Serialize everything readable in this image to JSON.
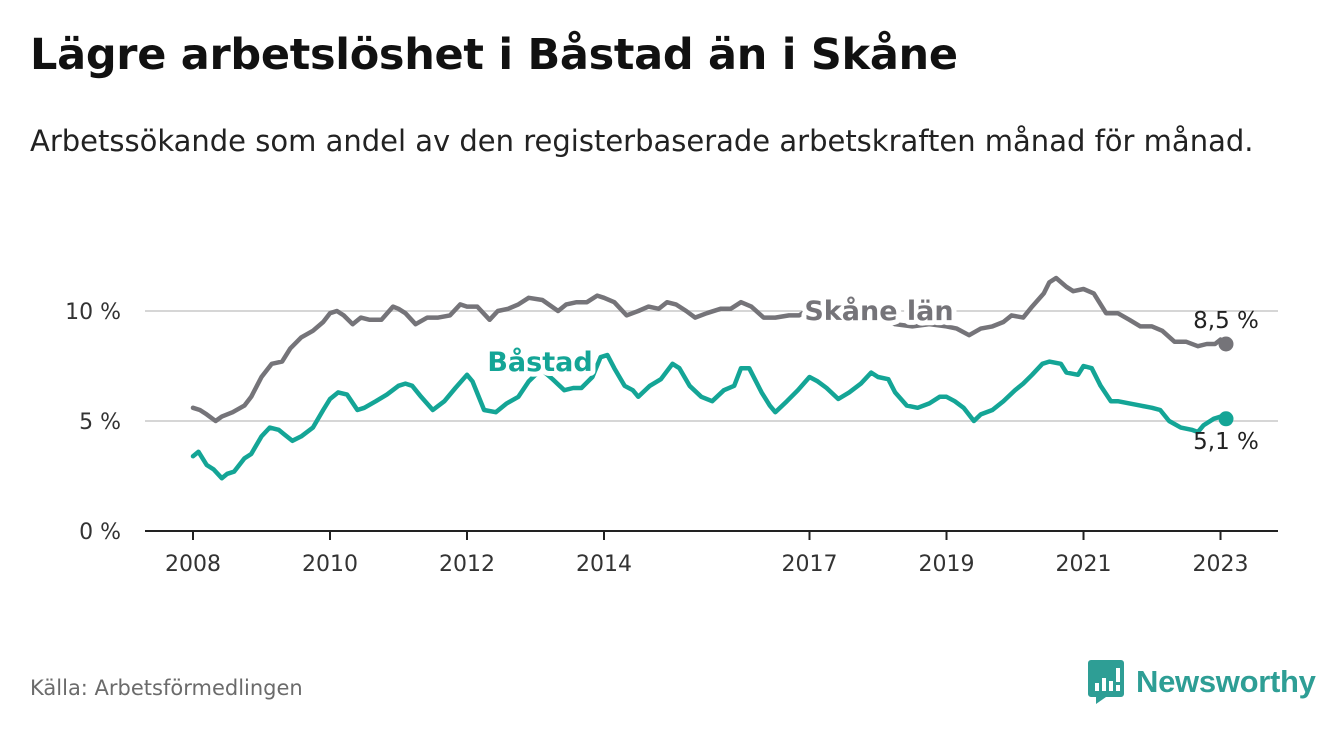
{
  "title": "Lägre arbetslöshet i Båstad än i Skåne",
  "subtitle": "Arbetssökande som andel av den registerbaserade arbetskraften månad för månad.",
  "source": "Källa: Arbetsförmedlingen",
  "brand": "Newsworthy",
  "colors": {
    "skane": "#757479",
    "bastad": "#14a596",
    "grid": "#d6d6d6",
    "axis": "#222222",
    "brand": "#2e9e95"
  },
  "chart_data": {
    "type": "line",
    "x_range": [
      2008.0,
      2023.08
    ],
    "ylim": [
      0,
      12
    ],
    "y_ticks": [
      {
        "value": 0,
        "label": "0 %"
      },
      {
        "value": 5,
        "label": "5 %"
      },
      {
        "value": 10,
        "label": "10 %"
      }
    ],
    "x_ticks": [
      {
        "value": 2008,
        "label": "2008"
      },
      {
        "value": 2010,
        "label": "2010"
      },
      {
        "value": 2012,
        "label": "2012"
      },
      {
        "value": 2014,
        "label": "2014"
      },
      {
        "value": 2017,
        "label": "2017"
      },
      {
        "value": 2019,
        "label": "2019"
      },
      {
        "value": 2021,
        "label": "2021"
      },
      {
        "value": 2023,
        "label": "2023"
      }
    ],
    "gridlines": true,
    "series": [
      {
        "name": "Skåne län",
        "key": "skane",
        "end_label": "8,5 %",
        "points": [
          [
            2008.0,
            5.6
          ],
          [
            2008.1,
            5.5
          ],
          [
            2008.2,
            5.3
          ],
          [
            2008.33,
            5.0
          ],
          [
            2008.42,
            5.2
          ],
          [
            2008.58,
            5.4
          ],
          [
            2008.75,
            5.7
          ],
          [
            2008.85,
            6.1
          ],
          [
            2009.0,
            7.0
          ],
          [
            2009.15,
            7.6
          ],
          [
            2009.3,
            7.7
          ],
          [
            2009.42,
            8.3
          ],
          [
            2009.58,
            8.8
          ],
          [
            2009.75,
            9.1
          ],
          [
            2009.9,
            9.5
          ],
          [
            2010.0,
            9.9
          ],
          [
            2010.1,
            10.0
          ],
          [
            2010.2,
            9.8
          ],
          [
            2010.33,
            9.4
          ],
          [
            2010.45,
            9.7
          ],
          [
            2010.58,
            9.6
          ],
          [
            2010.75,
            9.6
          ],
          [
            2010.92,
            10.2
          ],
          [
            2011.0,
            10.1
          ],
          [
            2011.1,
            9.9
          ],
          [
            2011.25,
            9.4
          ],
          [
            2011.42,
            9.7
          ],
          [
            2011.58,
            9.7
          ],
          [
            2011.75,
            9.8
          ],
          [
            2011.9,
            10.3
          ],
          [
            2012.0,
            10.2
          ],
          [
            2012.15,
            10.2
          ],
          [
            2012.33,
            9.6
          ],
          [
            2012.45,
            10.0
          ],
          [
            2012.6,
            10.1
          ],
          [
            2012.75,
            10.3
          ],
          [
            2012.9,
            10.6
          ],
          [
            2013.1,
            10.5
          ],
          [
            2013.33,
            10.0
          ],
          [
            2013.45,
            10.3
          ],
          [
            2013.6,
            10.4
          ],
          [
            2013.75,
            10.4
          ],
          [
            2013.9,
            10.7
          ],
          [
            2014.0,
            10.6
          ],
          [
            2014.15,
            10.4
          ],
          [
            2014.33,
            9.8
          ],
          [
            2014.5,
            10.0
          ],
          [
            2014.65,
            10.2
          ],
          [
            2014.8,
            10.1
          ],
          [
            2014.92,
            10.4
          ],
          [
            2015.05,
            10.3
          ],
          [
            2015.2,
            10.0
          ],
          [
            2015.33,
            9.7
          ],
          [
            2015.5,
            9.9
          ],
          [
            2015.7,
            10.1
          ],
          [
            2015.85,
            10.1
          ],
          [
            2016.0,
            10.4
          ],
          [
            2016.15,
            10.2
          ],
          [
            2016.33,
            9.7
          ],
          [
            2016.5,
            9.7
          ],
          [
            2016.7,
            9.8
          ],
          [
            2016.85,
            9.8
          ],
          [
            2017.0,
            10.1
          ],
          [
            2017.5,
            10.2
          ],
          [
            2017.75,
            9.9
          ],
          [
            2018.0,
            9.8
          ],
          [
            2018.25,
            9.4
          ],
          [
            2018.5,
            9.3
          ],
          [
            2018.75,
            9.4
          ],
          [
            2019.0,
            9.3
          ],
          [
            2019.15,
            9.2
          ],
          [
            2019.33,
            8.9
          ],
          [
            2019.5,
            9.2
          ],
          [
            2019.67,
            9.3
          ],
          [
            2019.83,
            9.5
          ],
          [
            2019.95,
            9.8
          ],
          [
            2020.12,
            9.7
          ],
          [
            2020.25,
            10.2
          ],
          [
            2020.42,
            10.8
          ],
          [
            2020.5,
            11.3
          ],
          [
            2020.6,
            11.5
          ],
          [
            2020.75,
            11.1
          ],
          [
            2020.85,
            10.9
          ],
          [
            2021.0,
            11.0
          ],
          [
            2021.15,
            10.8
          ],
          [
            2021.33,
            9.9
          ],
          [
            2021.5,
            9.9
          ],
          [
            2021.67,
            9.6
          ],
          [
            2021.83,
            9.3
          ],
          [
            2022.0,
            9.3
          ],
          [
            2022.15,
            9.1
          ],
          [
            2022.33,
            8.6
          ],
          [
            2022.5,
            8.6
          ],
          [
            2022.67,
            8.4
          ],
          [
            2022.8,
            8.5
          ],
          [
            2022.92,
            8.5
          ],
          [
            2023.0,
            8.7
          ],
          [
            2023.08,
            8.5
          ]
        ]
      },
      {
        "name": "Båstad",
        "key": "bastad",
        "end_label": "5,1 %",
        "points": [
          [
            2008.0,
            3.4
          ],
          [
            2008.08,
            3.6
          ],
          [
            2008.2,
            3.0
          ],
          [
            2008.3,
            2.8
          ],
          [
            2008.42,
            2.4
          ],
          [
            2008.5,
            2.6
          ],
          [
            2008.6,
            2.7
          ],
          [
            2008.75,
            3.3
          ],
          [
            2008.85,
            3.5
          ],
          [
            2009.0,
            4.3
          ],
          [
            2009.12,
            4.7
          ],
          [
            2009.25,
            4.6
          ],
          [
            2009.33,
            4.4
          ],
          [
            2009.45,
            4.1
          ],
          [
            2009.58,
            4.3
          ],
          [
            2009.75,
            4.7
          ],
          [
            2009.9,
            5.5
          ],
          [
            2010.0,
            6.0
          ],
          [
            2010.12,
            6.3
          ],
          [
            2010.25,
            6.2
          ],
          [
            2010.4,
            5.5
          ],
          [
            2010.5,
            5.6
          ],
          [
            2010.67,
            5.9
          ],
          [
            2010.83,
            6.2
          ],
          [
            2011.0,
            6.6
          ],
          [
            2011.1,
            6.7
          ],
          [
            2011.2,
            6.6
          ],
          [
            2011.33,
            6.1
          ],
          [
            2011.5,
            5.5
          ],
          [
            2011.67,
            5.9
          ],
          [
            2011.83,
            6.5
          ],
          [
            2012.0,
            7.1
          ],
          [
            2012.08,
            6.8
          ],
          [
            2012.25,
            5.5
          ],
          [
            2012.42,
            5.4
          ],
          [
            2012.58,
            5.8
          ],
          [
            2012.75,
            6.1
          ],
          [
            2012.9,
            6.8
          ],
          [
            2013.0,
            7.1
          ],
          [
            2013.1,
            7.3
          ],
          [
            2013.25,
            6.9
          ],
          [
            2013.42,
            6.4
          ],
          [
            2013.55,
            6.5
          ],
          [
            2013.67,
            6.5
          ],
          [
            2013.83,
            7.0
          ],
          [
            2013.95,
            7.9
          ],
          [
            2014.05,
            8.0
          ],
          [
            2014.15,
            7.4
          ],
          [
            2014.3,
            6.6
          ],
          [
            2014.42,
            6.4
          ],
          [
            2014.5,
            6.1
          ],
          [
            2014.67,
            6.6
          ],
          [
            2014.83,
            6.9
          ],
          [
            2015.0,
            7.6
          ],
          [
            2015.1,
            7.4
          ],
          [
            2015.25,
            6.6
          ],
          [
            2015.42,
            6.1
          ],
          [
            2015.58,
            5.9
          ],
          [
            2015.75,
            6.4
          ],
          [
            2015.9,
            6.6
          ],
          [
            2016.0,
            7.4
          ],
          [
            2016.12,
            7.4
          ],
          [
            2016.3,
            6.3
          ],
          [
            2016.42,
            5.7
          ],
          [
            2016.5,
            5.4
          ],
          [
            2016.67,
            5.9
          ],
          [
            2016.83,
            6.4
          ],
          [
            2017.0,
            7.0
          ],
          [
            2017.12,
            6.8
          ],
          [
            2017.25,
            6.5
          ],
          [
            2017.42,
            6.0
          ],
          [
            2017.58,
            6.3
          ],
          [
            2017.75,
            6.7
          ],
          [
            2017.9,
            7.2
          ],
          [
            2018.0,
            7.0
          ],
          [
            2018.15,
            6.9
          ],
          [
            2018.25,
            6.3
          ],
          [
            2018.42,
            5.7
          ],
          [
            2018.58,
            5.6
          ],
          [
            2018.75,
            5.8
          ],
          [
            2018.9,
            6.1
          ],
          [
            2019.0,
            6.1
          ],
          [
            2019.12,
            5.9
          ],
          [
            2019.25,
            5.6
          ],
          [
            2019.4,
            5.0
          ],
          [
            2019.5,
            5.3
          ],
          [
            2019.67,
            5.5
          ],
          [
            2019.83,
            5.9
          ],
          [
            2020.0,
            6.4
          ],
          [
            2020.12,
            6.7
          ],
          [
            2020.25,
            7.1
          ],
          [
            2020.4,
            7.6
          ],
          [
            2020.5,
            7.7
          ],
          [
            2020.67,
            7.6
          ],
          [
            2020.75,
            7.2
          ],
          [
            2020.92,
            7.1
          ],
          [
            2021.0,
            7.5
          ],
          [
            2021.12,
            7.4
          ],
          [
            2021.25,
            6.6
          ],
          [
            2021.4,
            5.9
          ],
          [
            2021.5,
            5.9
          ],
          [
            2021.67,
            5.8
          ],
          [
            2021.83,
            5.7
          ],
          [
            2022.0,
            5.6
          ],
          [
            2022.12,
            5.5
          ],
          [
            2022.25,
            5.0
          ],
          [
            2022.42,
            4.7
          ],
          [
            2022.58,
            4.6
          ],
          [
            2022.67,
            4.5
          ],
          [
            2022.75,
            4.8
          ],
          [
            2022.9,
            5.1
          ],
          [
            2023.0,
            5.2
          ],
          [
            2023.08,
            5.1
          ]
        ]
      }
    ]
  }
}
